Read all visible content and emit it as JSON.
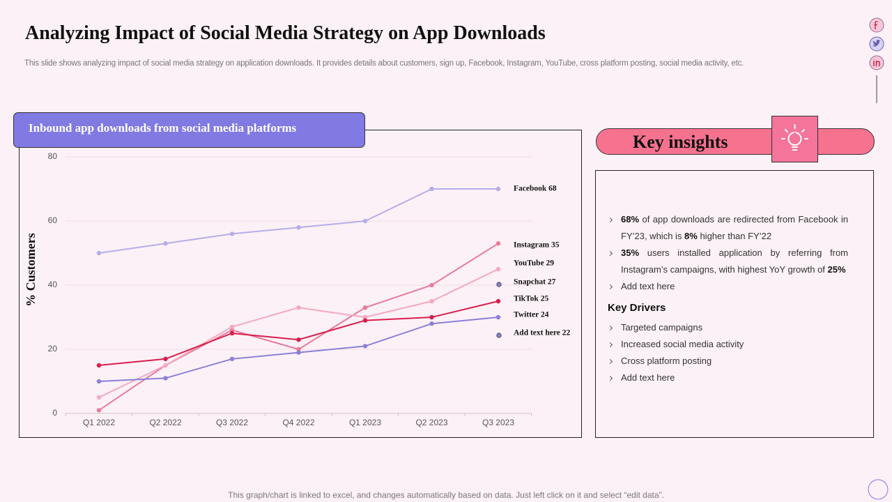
{
  "title": "Analyzing Impact of Social Media Strategy on App Downloads",
  "subtitle": "This slide shows analyzing impact of social media strategy on application downloads. It provides details about customers, sign up, Facebook, Instagram, YouTube, cross platform posting, social media activity, etc.",
  "chart_data": {
    "type": "line",
    "title": "Inbound app downloads from social media platforms",
    "ylabel": "% Customers",
    "categories": [
      "Q1 2022",
      "Q2 2022",
      "Q3 2022",
      "Q4 2022",
      "Q1 2023",
      "Q2 2023",
      "Q3 2023"
    ],
    "series": [
      {
        "name": "Facebook 68",
        "color": "#b4aeea",
        "values": [
          50,
          53,
          56,
          58,
          60,
          70,
          70
        ]
      },
      {
        "name": "Instagram 35",
        "color": "#e77b99",
        "values": [
          1,
          15,
          26,
          20,
          33,
          40,
          53
        ]
      },
      {
        "name": "YouTube 29",
        "color": "#f3a9bf",
        "values": [
          5,
          15,
          27,
          33,
          30,
          35,
          45
        ]
      },
      {
        "name": "TikTok 25",
        "color": "#d81e4e",
        "values": [
          15,
          17,
          25,
          23,
          29,
          30,
          35
        ]
      },
      {
        "name": "Twitter 24",
        "color": "#8a80d9",
        "values": [
          10,
          11,
          17,
          19,
          21,
          28,
          30
        ]
      }
    ],
    "annotations": [
      "Snapchat 27",
      "Add text here 22"
    ],
    "ylim": [
      0,
      80
    ],
    "yticks": [
      0,
      20,
      40,
      60,
      80
    ],
    "grid": true
  },
  "key_insights": {
    "title": "Key insights",
    "items": [
      [
        {
          "text": "68%",
          "bold": true
        },
        {
          "text": " of app downloads are redirected from Facebook in FY’23, which is "
        },
        {
          "text": "8%",
          "bold": true
        },
        {
          "text": " higher than FY’22"
        }
      ],
      [
        {
          "text": "35%",
          "bold": true
        },
        {
          "text": " users installed application by referring from Instagram’s campaigns, with highest YoY growth of "
        },
        {
          "text": "25%",
          "bold": true
        }
      ],
      [
        {
          "text": "Add text here"
        }
      ]
    ],
    "drivers_title": "Key Drivers",
    "drivers": [
      "Targeted campaigns",
      "Increased social media activity",
      "Cross platform posting",
      "Add text here"
    ]
  },
  "footer": "This graph/chart is linked to excel, and changes automatically based on data. Just left click on it and select “edit data”."
}
